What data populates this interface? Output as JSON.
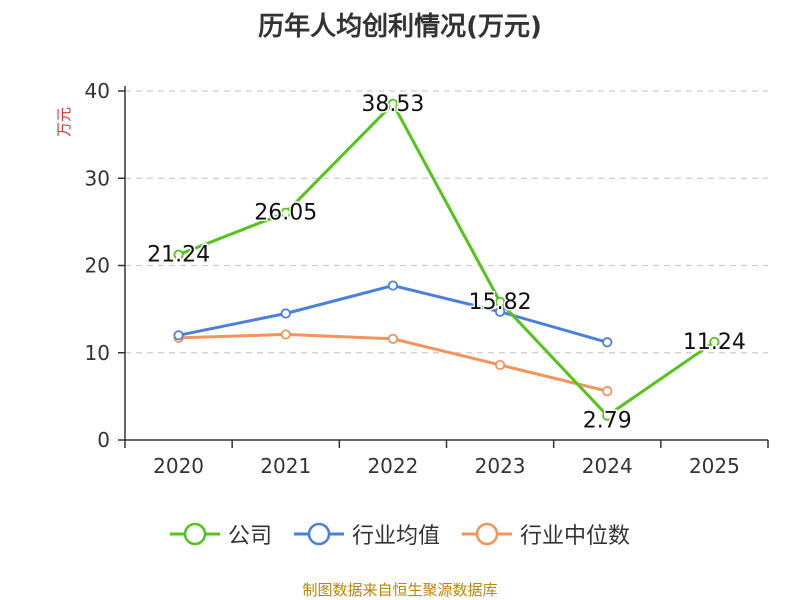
{
  "chart_data": {
    "type": "line",
    "title": "历年人均创利情况(万元)",
    "ylabel": "万元",
    "xlabel": "",
    "categories": [
      "2020",
      "2021",
      "2022",
      "2023",
      "2024",
      "2025"
    ],
    "ylim": [
      0,
      40
    ],
    "yticks": [
      0,
      10,
      20,
      30,
      40
    ],
    "grid": true,
    "legend_position": "bottom",
    "series": [
      {
        "name": "公司",
        "color": "#52c41a",
        "values": [
          21.24,
          26.05,
          38.53,
          15.82,
          2.79,
          11.24
        ],
        "labels": [
          "21.24",
          "26.05",
          "38.53",
          "15.82",
          "2.79",
          "11.24"
        ]
      },
      {
        "name": "行业均值",
        "color": "#4a7fdc",
        "values": [
          12.0,
          14.5,
          17.7,
          14.7,
          11.2,
          null
        ]
      },
      {
        "name": "行业中位数",
        "color": "#f4935a",
        "values": [
          11.7,
          12.1,
          11.6,
          8.6,
          5.6,
          null
        ]
      }
    ]
  },
  "source": "制图数据来自恒生聚源数据库"
}
